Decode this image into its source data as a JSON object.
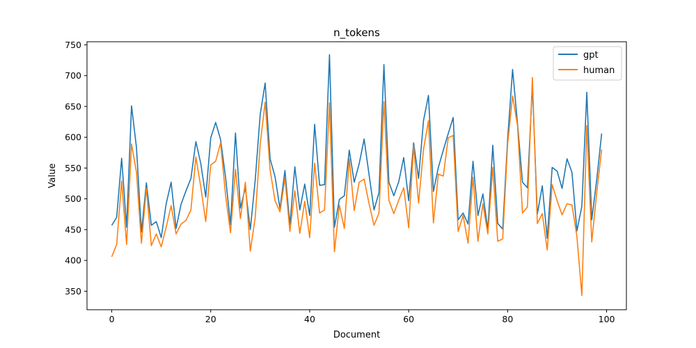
{
  "chart_data": {
    "type": "line",
    "title": "n_tokens",
    "xlabel": "Document",
    "ylabel": "Value",
    "xlim": [
      -5,
      104
    ],
    "ylim": [
      320,
      755
    ],
    "xticks": [
      0,
      20,
      40,
      60,
      80,
      100
    ],
    "yticks": [
      350,
      400,
      450,
      500,
      550,
      600,
      650,
      700,
      750
    ],
    "grid": false,
    "legend_position": "top-right",
    "series": [
      {
        "name": "gpt",
        "color": "#1f77b4",
        "values": [
          457,
          470,
          566,
          454,
          651,
          583,
          446,
          526,
          457,
          463,
          437,
          492,
          527,
          452,
          491,
          513,
          533,
          593,
          557,
          503,
          599,
          624,
          596,
          535,
          458,
          607,
          485,
          518,
          450,
          531,
          637,
          688,
          565,
          536,
          484,
          546,
          458,
          552,
          482,
          524,
          473,
          621,
          522,
          523,
          734,
          454,
          499,
          505,
          579,
          527,
          557,
          597,
          539,
          482,
          510,
          718,
          527,
          505,
          528,
          567,
          497,
          591,
          533,
          627,
          668,
          512,
          551,
          579,
          606,
          632,
          466,
          477,
          459,
          561,
          473,
          508,
          450,
          587,
          460,
          451,
          597,
          710,
          622,
          527,
          518,
          684,
          475,
          521,
          436,
          551,
          545,
          517,
          565,
          543,
          448,
          488,
          673,
          466,
          531,
          606
        ]
      },
      {
        "name": "human",
        "color": "#ff7f0e",
        "values": [
          406,
          426,
          529,
          426,
          589,
          543,
          428,
          518,
          424,
          443,
          422,
          454,
          489,
          443,
          459,
          465,
          482,
          568,
          519,
          463,
          555,
          561,
          591,
          506,
          445,
          548,
          468,
          527,
          415,
          470,
          589,
          657,
          547,
          497,
          479,
          534,
          447,
          513,
          444,
          496,
          437,
          558,
          477,
          482,
          656,
          414,
          490,
          452,
          565,
          481,
          527,
          532,
          492,
          457,
          477,
          658,
          498,
          476,
          498,
          518,
          453,
          586,
          493,
          580,
          627,
          461,
          540,
          537,
          599,
          603,
          447,
          473,
          428,
          535,
          431,
          492,
          443,
          551,
          431,
          435,
          589,
          667,
          619,
          477,
          487,
          697,
          460,
          476,
          417,
          523,
          497,
          474,
          492,
          490,
          439,
          343,
          619,
          430,
          510,
          580
        ]
      }
    ]
  }
}
